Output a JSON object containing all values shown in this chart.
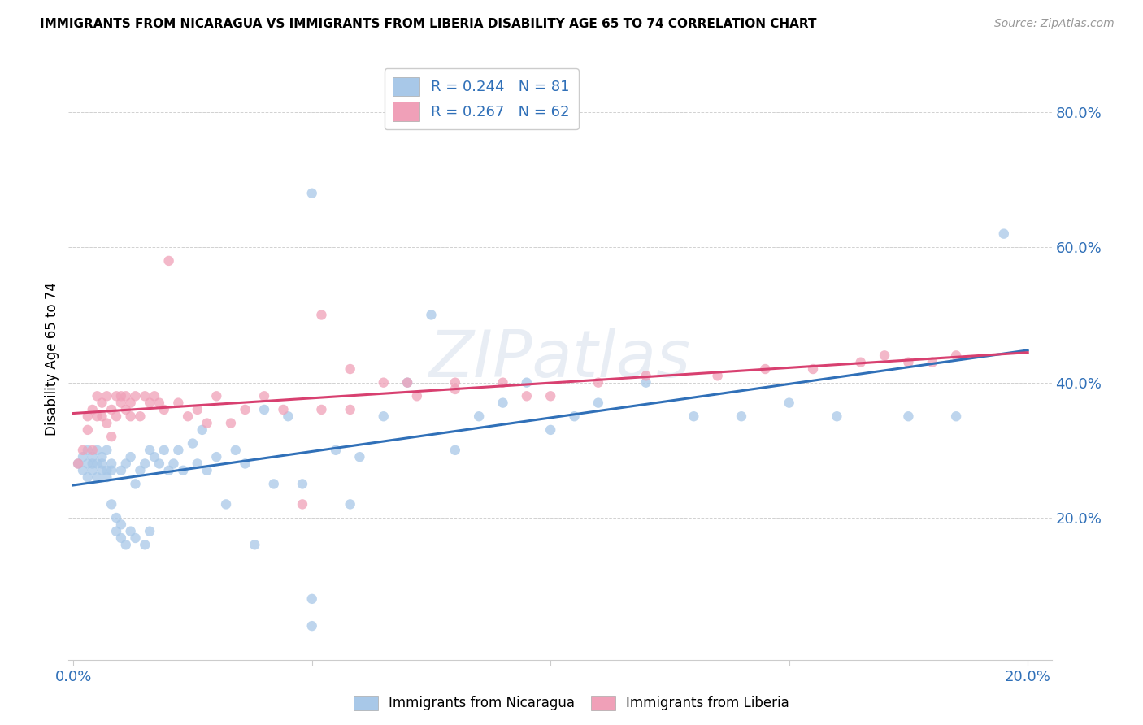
{
  "title": "IMMIGRANTS FROM NICARAGUA VS IMMIGRANTS FROM LIBERIA DISABILITY AGE 65 TO 74 CORRELATION CHART",
  "source": "Source: ZipAtlas.com",
  "ylabel": "Disability Age 65 to 74",
  "xlim": [
    -0.001,
    0.205
  ],
  "ylim": [
    -0.01,
    0.88
  ],
  "x_ticks": [
    0.0,
    0.05,
    0.1,
    0.15,
    0.2
  ],
  "x_tick_labels": [
    "0.0%",
    "",
    "",
    "",
    "20.0%"
  ],
  "y_ticks": [
    0.0,
    0.2,
    0.4,
    0.6,
    0.8
  ],
  "y_tick_labels": [
    "",
    "20.0%",
    "40.0%",
    "60.0%",
    "80.0%"
  ],
  "legend_r1": "R = 0.244   N = 81",
  "legend_r2": "R = 0.267   N = 62",
  "color_nicaragua": "#a8c8e8",
  "color_liberia": "#f0a0b8",
  "line_color_nicaragua": "#3070b8",
  "line_color_liberia": "#d84070",
  "watermark": "ZIPatlas",
  "nicaragua_x": [
    0.001,
    0.002,
    0.002,
    0.003,
    0.003,
    0.003,
    0.004,
    0.004,
    0.004,
    0.005,
    0.005,
    0.005,
    0.006,
    0.006,
    0.006,
    0.007,
    0.007,
    0.007,
    0.008,
    0.008,
    0.008,
    0.009,
    0.009,
    0.01,
    0.01,
    0.01,
    0.011,
    0.011,
    0.012,
    0.012,
    0.013,
    0.013,
    0.014,
    0.015,
    0.015,
    0.016,
    0.016,
    0.017,
    0.018,
    0.019,
    0.02,
    0.021,
    0.022,
    0.023,
    0.025,
    0.026,
    0.027,
    0.028,
    0.03,
    0.032,
    0.034,
    0.036,
    0.038,
    0.04,
    0.042,
    0.045,
    0.048,
    0.05,
    0.055,
    0.058,
    0.06,
    0.065,
    0.07,
    0.075,
    0.08,
    0.085,
    0.09,
    0.095,
    0.1,
    0.105,
    0.11,
    0.12,
    0.13,
    0.14,
    0.15,
    0.16,
    0.175,
    0.185,
    0.195,
    0.05,
    0.05
  ],
  "nicaragua_y": [
    0.28,
    0.29,
    0.27,
    0.3,
    0.28,
    0.26,
    0.29,
    0.27,
    0.28,
    0.3,
    0.28,
    0.26,
    0.27,
    0.29,
    0.28,
    0.3,
    0.27,
    0.26,
    0.28,
    0.22,
    0.27,
    0.18,
    0.2,
    0.17,
    0.19,
    0.27,
    0.28,
    0.16,
    0.18,
    0.29,
    0.25,
    0.17,
    0.27,
    0.16,
    0.28,
    0.3,
    0.18,
    0.29,
    0.28,
    0.3,
    0.27,
    0.28,
    0.3,
    0.27,
    0.31,
    0.28,
    0.33,
    0.27,
    0.29,
    0.22,
    0.3,
    0.28,
    0.16,
    0.36,
    0.25,
    0.35,
    0.25,
    0.68,
    0.3,
    0.22,
    0.29,
    0.35,
    0.4,
    0.5,
    0.3,
    0.35,
    0.37,
    0.4,
    0.33,
    0.35,
    0.37,
    0.4,
    0.35,
    0.35,
    0.37,
    0.35,
    0.35,
    0.35,
    0.62,
    0.08,
    0.04
  ],
  "liberia_x": [
    0.001,
    0.002,
    0.003,
    0.003,
    0.004,
    0.004,
    0.005,
    0.005,
    0.006,
    0.006,
    0.007,
    0.007,
    0.008,
    0.008,
    0.009,
    0.009,
    0.01,
    0.01,
    0.011,
    0.011,
    0.012,
    0.012,
    0.013,
    0.014,
    0.015,
    0.016,
    0.017,
    0.018,
    0.019,
    0.02,
    0.022,
    0.024,
    0.026,
    0.028,
    0.03,
    0.033,
    0.036,
    0.04,
    0.044,
    0.048,
    0.052,
    0.058,
    0.065,
    0.072,
    0.08,
    0.09,
    0.1,
    0.11,
    0.12,
    0.095,
    0.135,
    0.145,
    0.155,
    0.165,
    0.175,
    0.185,
    0.052,
    0.058,
    0.07,
    0.08,
    0.17,
    0.18
  ],
  "liberia_y": [
    0.28,
    0.3,
    0.35,
    0.33,
    0.36,
    0.3,
    0.38,
    0.35,
    0.37,
    0.35,
    0.38,
    0.34,
    0.36,
    0.32,
    0.35,
    0.38,
    0.38,
    0.37,
    0.38,
    0.36,
    0.35,
    0.37,
    0.38,
    0.35,
    0.38,
    0.37,
    0.38,
    0.37,
    0.36,
    0.58,
    0.37,
    0.35,
    0.36,
    0.34,
    0.38,
    0.34,
    0.36,
    0.38,
    0.36,
    0.22,
    0.36,
    0.36,
    0.4,
    0.38,
    0.4,
    0.4,
    0.38,
    0.4,
    0.41,
    0.38,
    0.41,
    0.42,
    0.42,
    0.43,
    0.43,
    0.44,
    0.5,
    0.42,
    0.4,
    0.39,
    0.44,
    0.43
  ]
}
